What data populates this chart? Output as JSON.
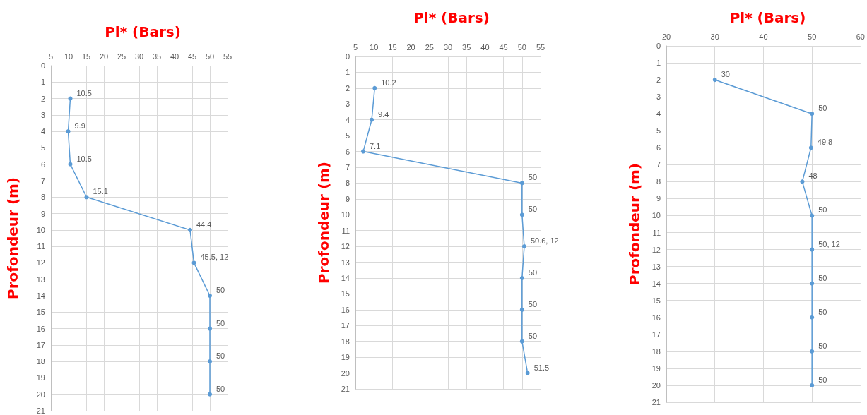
{
  "chart_data": [
    {
      "type": "line",
      "orientation": "horizontal",
      "title": "Pl* (Bars)",
      "ylabel": "Profondeur (m)",
      "xlim": [
        5,
        55
      ],
      "xticks": [
        5,
        10,
        15,
        20,
        25,
        30,
        35,
        40,
        45,
        50,
        55
      ],
      "ylim": [
        21,
        0
      ],
      "yticks": [
        0,
        1,
        2,
        3,
        4,
        5,
        6,
        7,
        8,
        9,
        10,
        11,
        12,
        13,
        14,
        15,
        16,
        17,
        18,
        19,
        20,
        21
      ],
      "grid": true,
      "marker": "circle",
      "series": [
        {
          "color": "#5b9bd5",
          "x": [
            2,
            4,
            6,
            8,
            10,
            12,
            14,
            16,
            18,
            20
          ],
          "values": [
            10.5,
            9.9,
            10.5,
            15.1,
            44.4,
            45.5,
            50,
            50,
            50,
            50
          ],
          "value_labels": [
            "10.5",
            "9.9",
            "10.5",
            "15.1",
            "44.4",
            "45.5, 12",
            "50",
            "50",
            "50",
            "50"
          ]
        }
      ]
    },
    {
      "type": "line",
      "orientation": "horizontal",
      "title": "Pl* (Bars)",
      "ylabel": "Profondeur (m)",
      "xlim": [
        5,
        55
      ],
      "xticks": [
        5,
        10,
        15,
        20,
        25,
        30,
        35,
        40,
        45,
        50,
        55
      ],
      "ylim": [
        21,
        0
      ],
      "yticks": [
        0,
        1,
        2,
        3,
        4,
        5,
        6,
        7,
        8,
        9,
        10,
        11,
        12,
        13,
        14,
        15,
        16,
        17,
        18,
        19,
        20,
        21
      ],
      "grid": true,
      "marker": "circle",
      "series": [
        {
          "color": "#5b9bd5",
          "x": [
            2,
            4,
            6,
            8,
            10,
            12,
            14,
            16,
            18,
            20
          ],
          "values": [
            10.2,
            9.4,
            7.1,
            50,
            50,
            50.6,
            50,
            50,
            50,
            51.5
          ],
          "value_labels": [
            "10.2",
            "9.4",
            "7.1",
            "50",
            "50",
            "50.6, 12",
            "50",
            "50",
            "50",
            "51.5"
          ]
        }
      ]
    },
    {
      "type": "line",
      "orientation": "horizontal",
      "title": "Pl* (Bars)",
      "ylabel": "Profondeur (m)",
      "xlim": [
        20,
        60
      ],
      "xticks": [
        20,
        30,
        40,
        50,
        60
      ],
      "ylim": [
        21,
        0
      ],
      "yticks": [
        0,
        1,
        2,
        3,
        4,
        5,
        6,
        7,
        8,
        9,
        10,
        11,
        12,
        13,
        14,
        15,
        16,
        17,
        18,
        19,
        20,
        21
      ],
      "grid": true,
      "marker": "circle",
      "series": [
        {
          "color": "#5b9bd5",
          "x": [
            2,
            4,
            6,
            8,
            10,
            12,
            14,
            16,
            18,
            20
          ],
          "values": [
            30,
            50,
            49.8,
            48,
            50,
            50,
            50,
            50,
            50,
            50
          ],
          "value_labels": [
            "30",
            "50",
            "49.8",
            "48",
            "50",
            "50, 12",
            "50",
            "50",
            "50",
            "50"
          ]
        }
      ]
    }
  ]
}
